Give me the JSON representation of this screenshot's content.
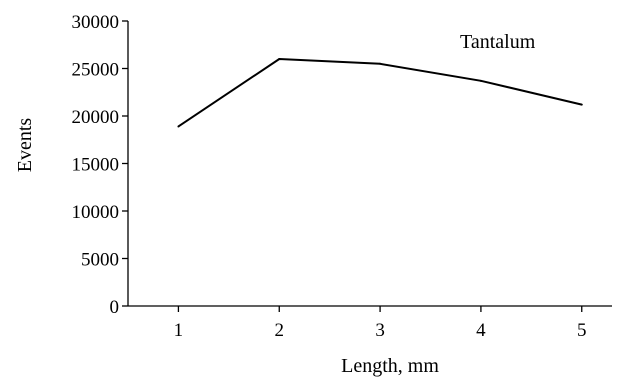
{
  "chart_data": {
    "type": "line",
    "title": "",
    "xlabel": "Length, mm",
    "ylabel": "Events",
    "annotation": "Tantalum",
    "x": [
      1,
      2,
      3,
      4,
      5
    ],
    "series": [
      {
        "values": [
          18900,
          26000,
          25500,
          23700,
          21200
        ]
      }
    ],
    "xlim": [
      0.5,
      5.3
    ],
    "ylim": [
      0,
      30000
    ],
    "xticks": [
      1,
      2,
      3,
      4,
      5
    ],
    "yticks": [
      0,
      5000,
      10000,
      15000,
      20000,
      25000,
      30000
    ],
    "grid": false,
    "legend": "none",
    "line_color": "#000000"
  }
}
